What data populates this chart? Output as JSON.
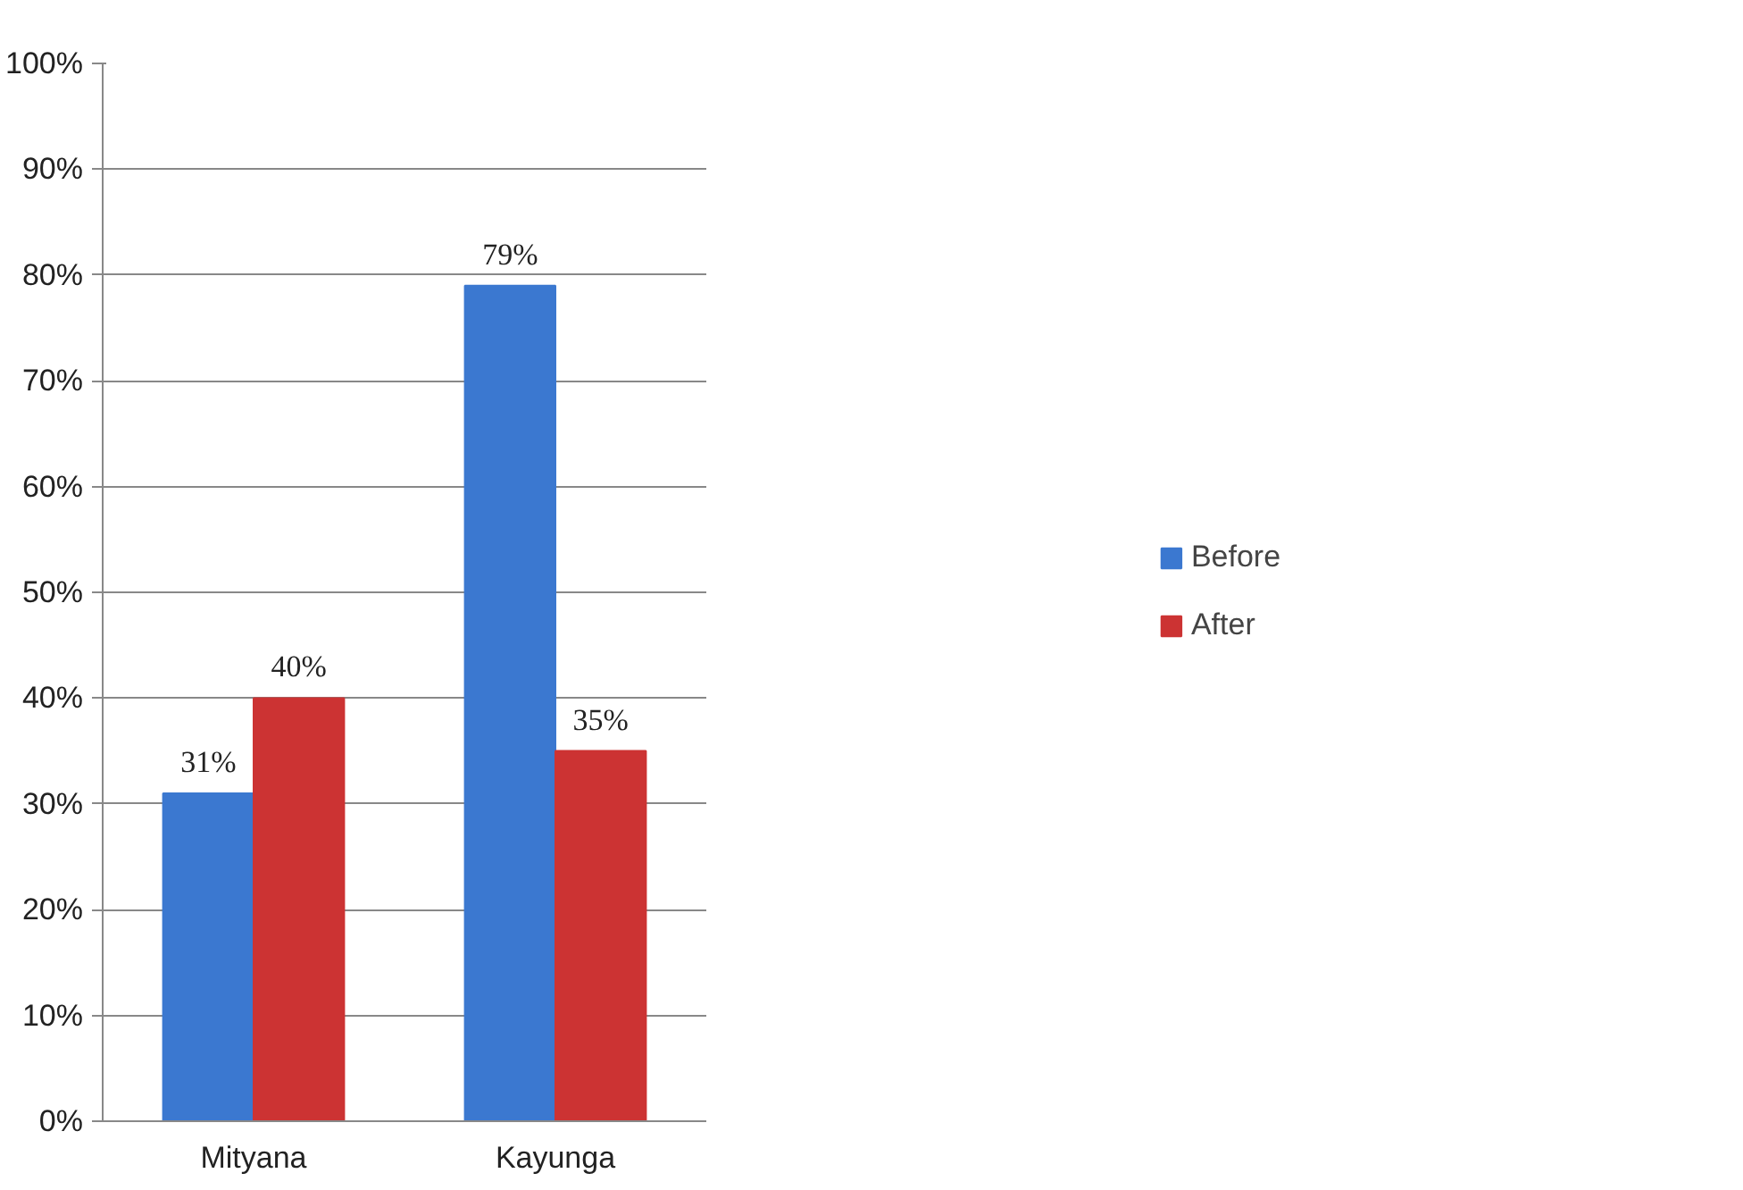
{
  "chart_data": {
    "type": "bar",
    "categories": [
      "Mityana",
      "Kayunga"
    ],
    "series": [
      {
        "name": "Before",
        "color": "#3b78d0",
        "values": [
          31,
          79
        ],
        "value_labels": [
          "31%",
          "79%"
        ]
      },
      {
        "name": "After",
        "color": "#cc3333",
        "values": [
          40,
          35
        ],
        "value_labels": [
          "40%",
          "35%"
        ]
      }
    ],
    "ylim": [
      0,
      100
    ],
    "yticks": [
      {
        "value": 0,
        "label": "0%"
      },
      {
        "value": 10,
        "label": "10%"
      },
      {
        "value": 20,
        "label": "20%"
      },
      {
        "value": 30,
        "label": "30%"
      },
      {
        "value": 40,
        "label": "40%"
      },
      {
        "value": 50,
        "label": "50%"
      },
      {
        "value": 60,
        "label": "60%"
      },
      {
        "value": 70,
        "label": "70%"
      },
      {
        "value": 80,
        "label": "80%"
      },
      {
        "value": 90,
        "label": "90%"
      },
      {
        "value": 100,
        "label": "100%"
      }
    ],
    "grid": "y",
    "legend": "right"
  }
}
